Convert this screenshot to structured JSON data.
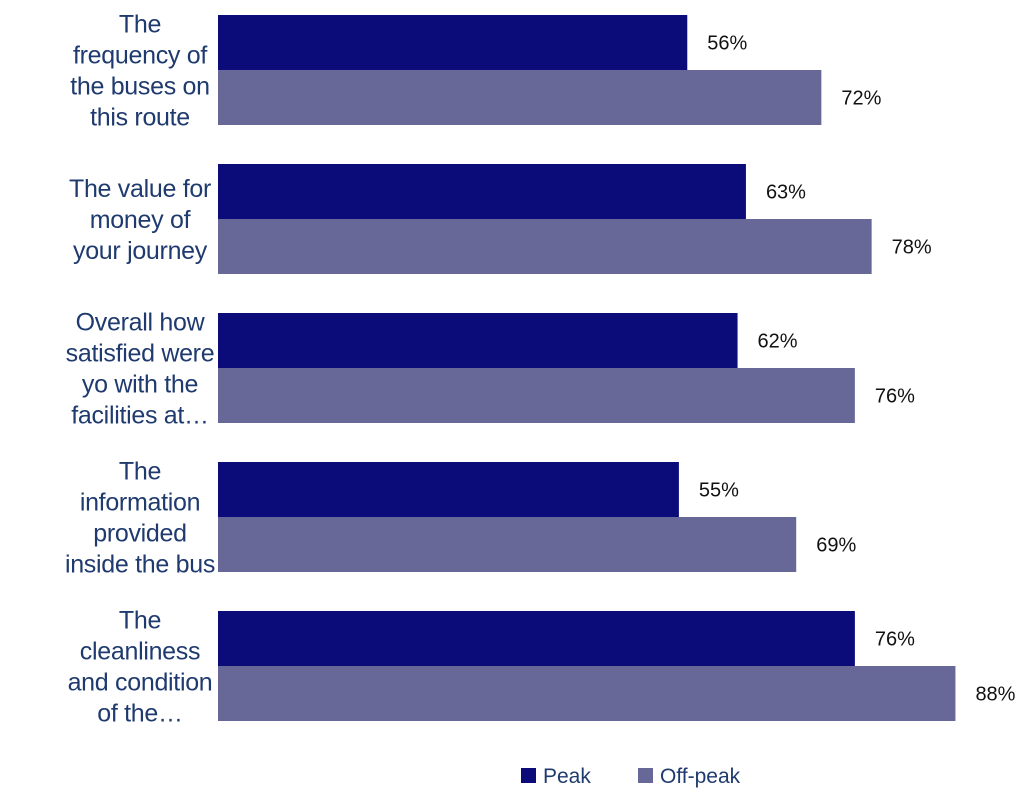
{
  "chart_data": {
    "type": "bar",
    "orientation": "horizontal",
    "categories": [
      [
        "The",
        "frequency of",
        "the buses on",
        "this route"
      ],
      [
        "The value for",
        "money of",
        "your journey"
      ],
      [
        "Overall how",
        "satisfied were",
        "yo with the",
        "facilities at…"
      ],
      [
        "The",
        "information",
        "provided",
        "inside the bus"
      ],
      [
        "The",
        "cleanliness",
        "and condition",
        "of the…"
      ]
    ],
    "series": [
      {
        "name": "Peak",
        "color": "#0b0b7a",
        "values": [
          56,
          63,
          62,
          55,
          76
        ]
      },
      {
        "name": "Off-peak",
        "color": "#686898",
        "values": [
          72,
          78,
          76,
          69,
          88
        ]
      }
    ],
    "value_suffix": "%",
    "xlim": [
      0,
      100
    ],
    "xlabel": "",
    "ylabel": "",
    "title": "",
    "grid": false,
    "legend": {
      "position": "bottom"
    }
  }
}
